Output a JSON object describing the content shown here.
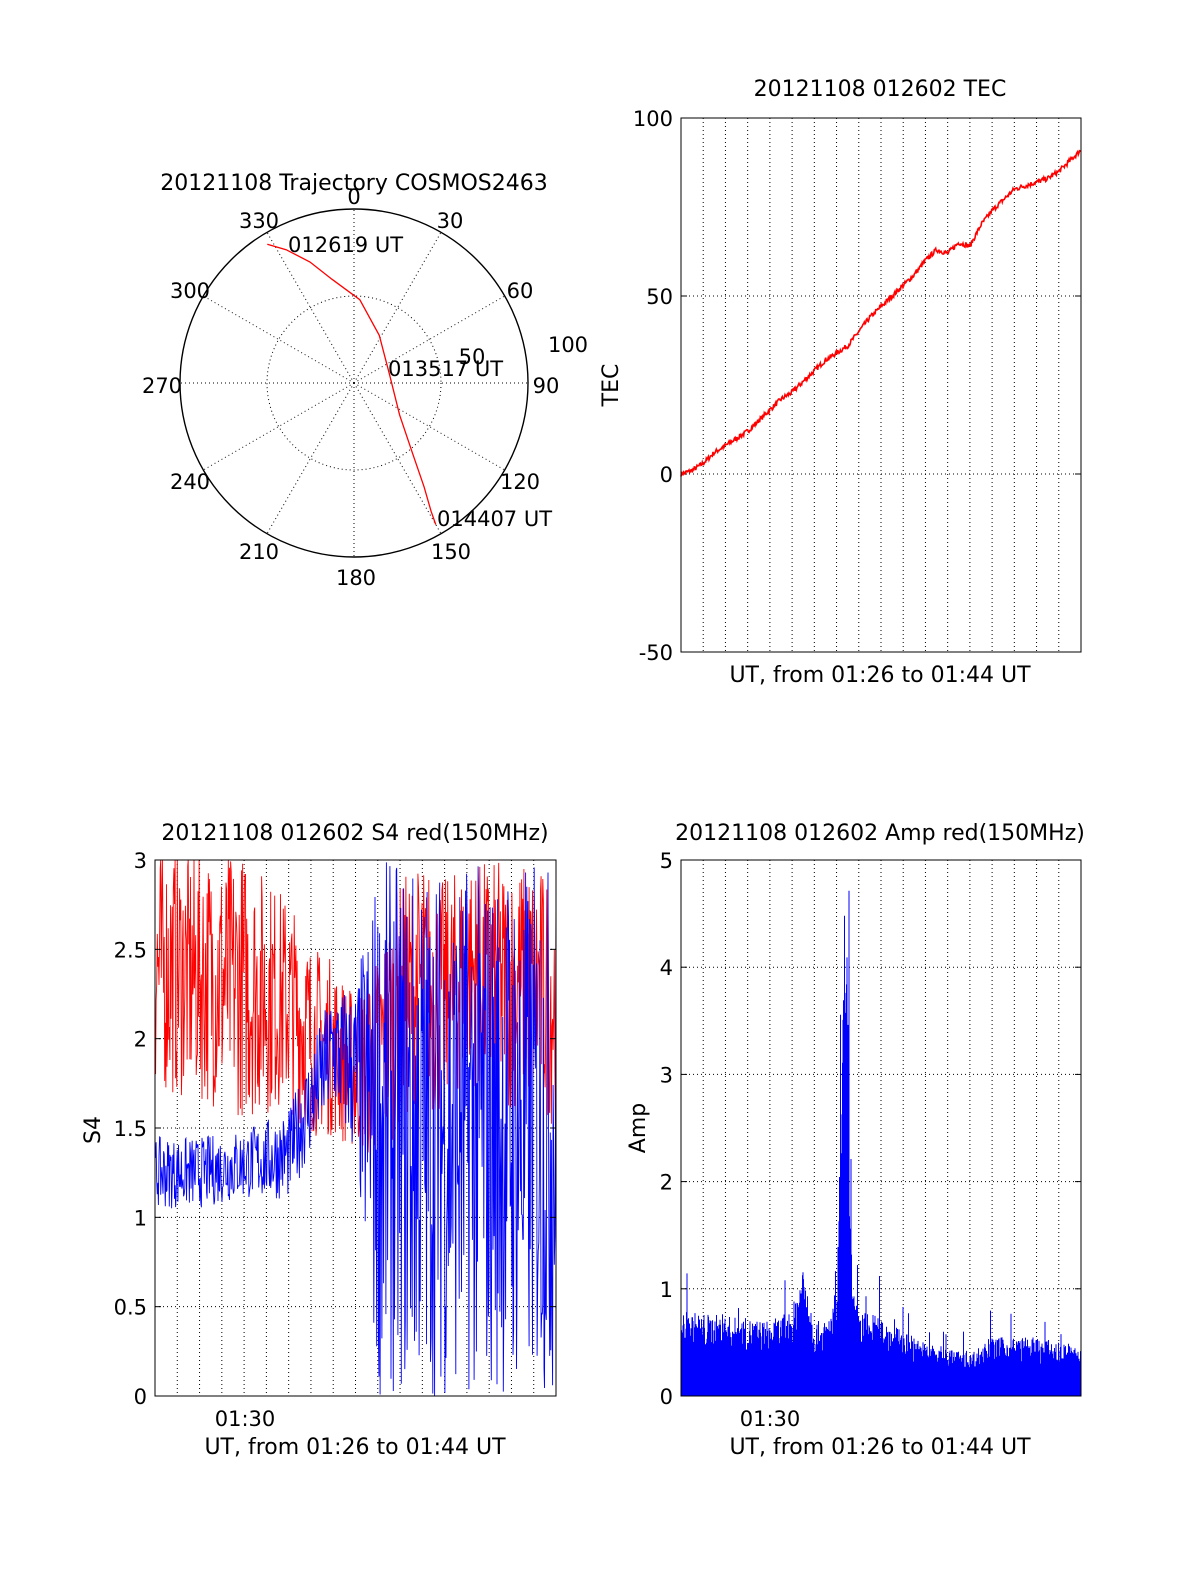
{
  "chart_data": [
    {
      "type": "polar-line",
      "title": "20121108 Trajectory COSMOS2463",
      "angle_labels": [
        "0",
        "30",
        "60",
        "90",
        "120",
        "150",
        "180",
        "210",
        "240",
        "270",
        "300",
        "330"
      ],
      "radial_max_label": "100",
      "radial_mid_label": "50",
      "annotations": [
        "012619 UT",
        "013517 UT",
        "014407 UT"
      ],
      "trajectory": {
        "color": "#ff0000",
        "points": [
          {
            "azimuth": 328,
            "radius_deg": 94
          },
          {
            "azimuth": 333,
            "radius_deg": 86
          },
          {
            "azimuth": 340,
            "radius_deg": 74
          },
          {
            "azimuth": 348,
            "radius_deg": 61
          },
          {
            "azimuth": 4,
            "radius_deg": 48
          },
          {
            "azimuth": 28,
            "radius_deg": 31
          },
          {
            "azimuth": 77,
            "radius_deg": 21
          },
          {
            "azimuth": 125,
            "radius_deg": 32
          },
          {
            "azimuth": 140,
            "radius_deg": 52
          },
          {
            "azimuth": 146,
            "radius_deg": 72
          },
          {
            "azimuth": 149,
            "radius_deg": 86
          },
          {
            "azimuth": 150,
            "radius_deg": 94
          }
        ]
      }
    },
    {
      "type": "line",
      "title": "20121108 012602 TEC",
      "ylabel": "TEC",
      "xlabel": "UT, from 01:26 to 01:44 UT",
      "ylim": [
        -50,
        100
      ],
      "yticks": [
        "-50",
        "0",
        "50",
        "100"
      ],
      "grid": true,
      "series": [
        {
          "color": "#ff0000",
          "x_min": [
            0,
            0.5,
            1,
            1.5,
            2,
            2.5,
            3,
            3.5,
            4,
            4.5,
            5,
            5.5,
            6,
            6.5,
            7,
            7.5,
            8,
            8.5,
            9,
            9.5,
            10,
            10.5,
            11,
            11.5,
            12,
            12.5,
            13,
            13.5,
            14,
            14.5,
            15,
            15.5,
            16,
            16.5,
            17,
            17.5,
            18
          ],
          "values": [
            0,
            1,
            3,
            6,
            8,
            10,
            12,
            15,
            18,
            21,
            23,
            26,
            29,
            32,
            34,
            36,
            40,
            44,
            47,
            50,
            53,
            56,
            60,
            63,
            62,
            65,
            64,
            70,
            74,
            77,
            80,
            81,
            82,
            83,
            85,
            88,
            91
          ]
        }
      ]
    },
    {
      "type": "line",
      "title": "20121108 012602 S4 red(150MHz)",
      "ylabel": "S4",
      "xlabel": "UT, from 01:26 to 01:44 UT",
      "ylim": [
        0,
        3
      ],
      "yticks": [
        "0",
        "0.5",
        "1",
        "1.5",
        "2",
        "2.5",
        "3"
      ],
      "xticks": [
        "01:30"
      ],
      "grid": true,
      "series": [
        {
          "color": "#ff0000",
          "x_min": [
            0,
            2,
            4,
            6,
            7,
            8,
            9,
            10,
            11,
            12,
            13,
            14,
            15,
            16,
            17,
            18
          ],
          "mean": [
            2.4,
            2.35,
            2.3,
            2.2,
            2.0,
            1.95,
            1.8,
            1.9,
            2.2,
            2.3,
            2.2,
            2.4,
            2.3,
            2.3,
            2.3,
            2.2
          ],
          "spread": [
            0.7,
            0.7,
            0.75,
            0.6,
            0.55,
            0.5,
            0.45,
            0.6,
            0.7,
            0.7,
            0.7,
            0.6,
            0.7,
            0.7,
            0.7,
            0.7
          ]
        },
        {
          "color": "#0000ff",
          "x_min": [
            0,
            2,
            4,
            6,
            7,
            8,
            9,
            10,
            11,
            12,
            13,
            14,
            15,
            16,
            17,
            18
          ],
          "mean": [
            1.25,
            1.25,
            1.3,
            1.35,
            1.65,
            1.95,
            1.8,
            1.5,
            1.5,
            1.5,
            1.5,
            1.5,
            1.5,
            1.5,
            1.5,
            1.5
          ],
          "spread": [
            0.2,
            0.2,
            0.2,
            0.25,
            0.3,
            0.35,
            0.5,
            1.5,
            1.5,
            1.5,
            1.5,
            1.5,
            1.5,
            1.5,
            1.5,
            1.5
          ]
        }
      ]
    },
    {
      "type": "line",
      "title": "20121108 012602 Amp red(150MHz)",
      "ylabel": "Amp",
      "xlabel": "UT, from 01:26 to 01:44 UT",
      "ylim": [
        0,
        5
      ],
      "yticks": [
        "0",
        "1",
        "2",
        "3",
        "4",
        "5"
      ],
      "xticks": [
        "01:30"
      ],
      "grid": true,
      "series": [
        {
          "color": "#0000ff",
          "x_min": [
            0,
            2,
            4,
            5,
            5.5,
            6,
            6.5,
            7,
            7.3,
            7.5,
            7.7,
            8,
            9,
            10,
            11,
            12,
            13,
            14,
            15,
            16,
            17,
            18
          ],
          "envelope": [
            0.8,
            0.75,
            0.7,
            0.8,
            1.3,
            0.7,
            0.7,
            0.9,
            3.7,
            4.3,
            1.0,
            0.8,
            0.75,
            0.6,
            0.5,
            0.45,
            0.4,
            0.55,
            0.55,
            0.55,
            0.5,
            0.45
          ]
        }
      ]
    }
  ]
}
